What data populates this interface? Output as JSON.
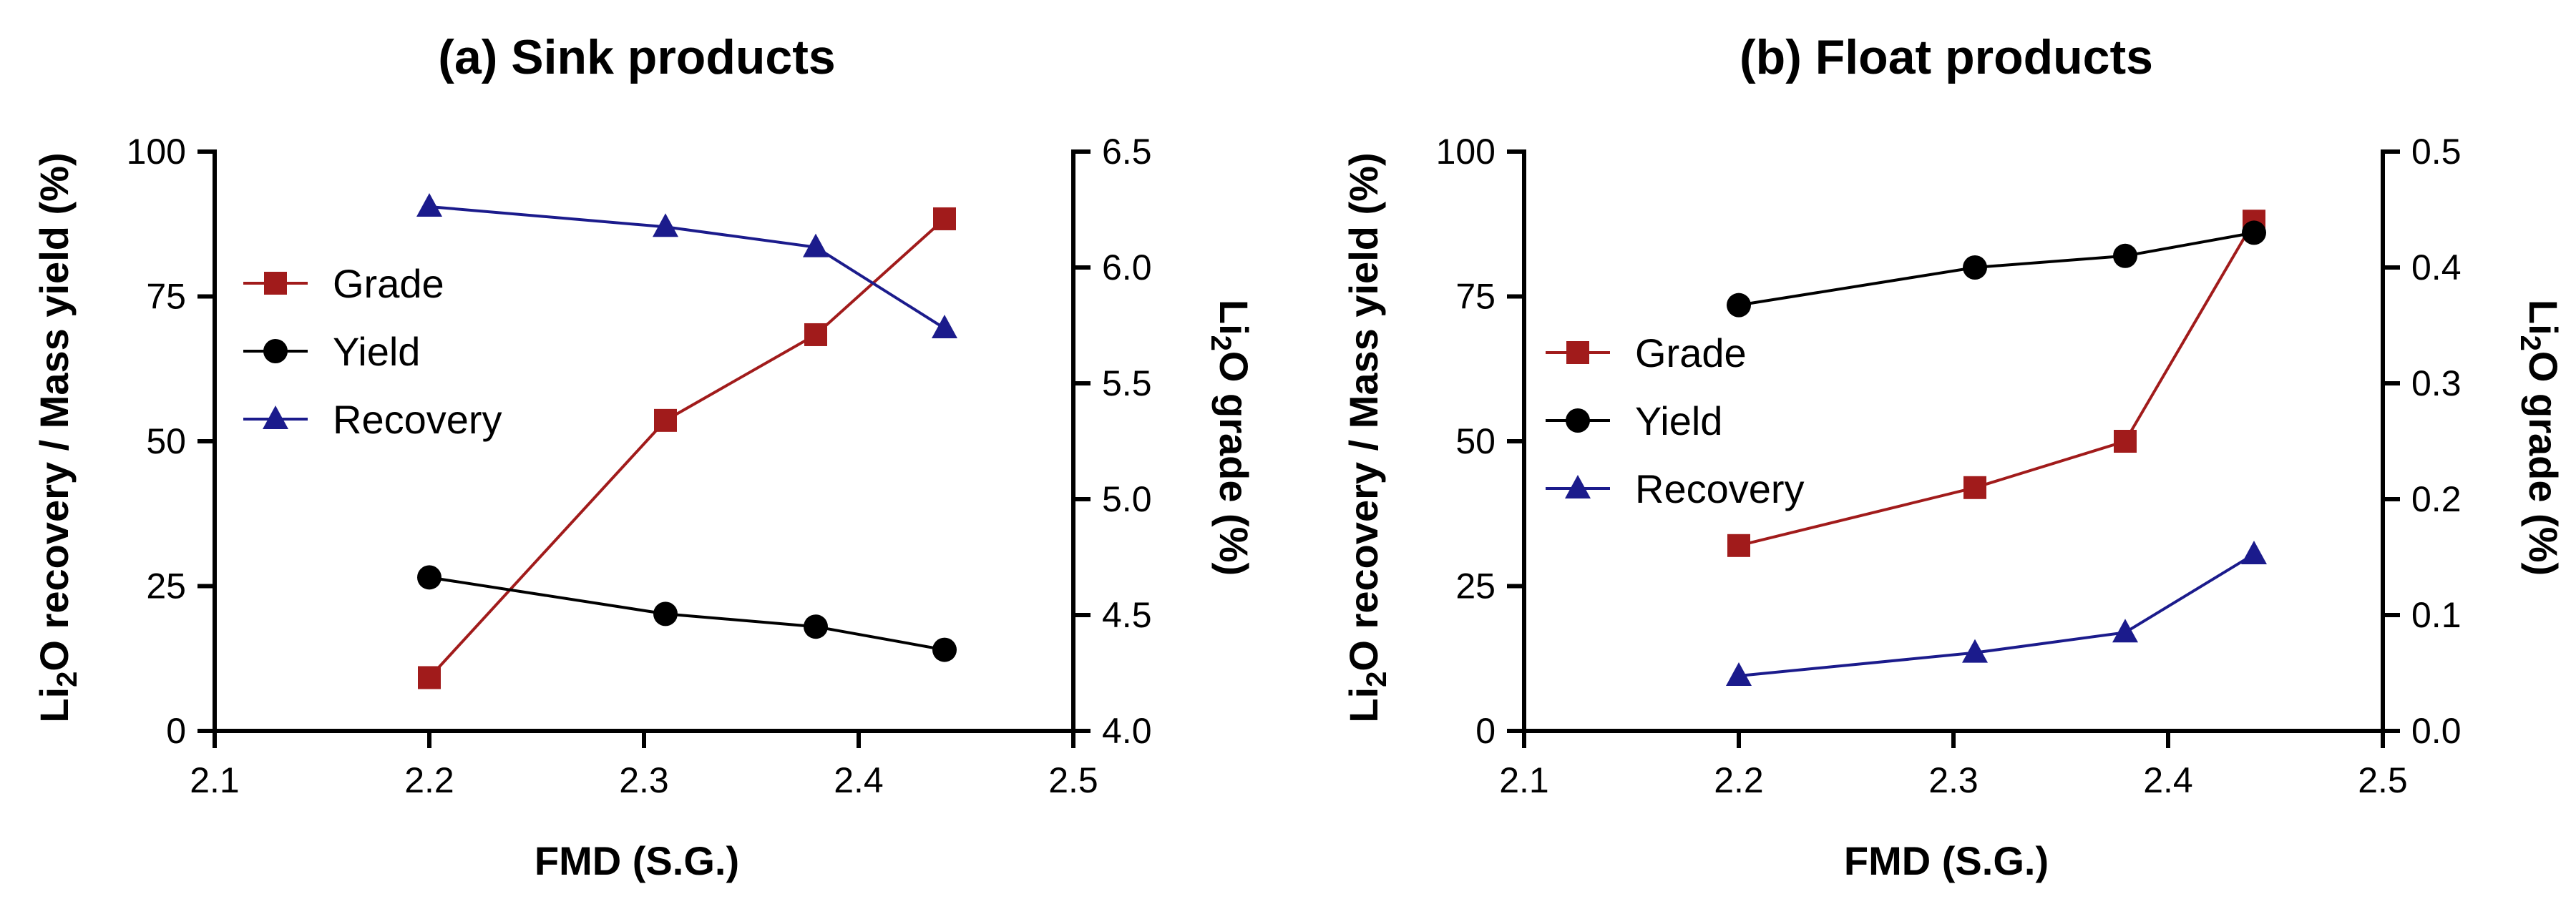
{
  "chart_data": [
    {
      "type": "line",
      "title": "(a) Sink products",
      "xlabel": "FMD (S.G.)",
      "ylabel_left": "Li2O recovery / Mass yield (%)",
      "ylabel_right": "Li2O grade (%)",
      "xlim": [
        2.1,
        2.5
      ],
      "ylim_left": [
        0,
        100
      ],
      "ylim_right": [
        4.0,
        6.5
      ],
      "x_ticks": [
        "2.1",
        "2.2",
        "2.3",
        "2.4",
        "2.5"
      ],
      "y_left_ticks": [
        "0",
        "25",
        "50",
        "75",
        "100"
      ],
      "y_right_ticks": [
        "4.0",
        "4.5",
        "5.0",
        "5.5",
        "6.0",
        "6.5"
      ],
      "legend_position": "upper-left",
      "grid": false,
      "x": [
        2.2,
        2.31,
        2.38,
        2.44
      ],
      "series": [
        {
          "name": "Grade",
          "axis": "right",
          "marker": "square",
          "color": "#a11b1b",
          "values": [
            4.23,
            5.34,
            5.71,
            6.21
          ]
        },
        {
          "name": "Yield",
          "axis": "left",
          "marker": "circle",
          "color": "#000000",
          "values": [
            26.5,
            20.2,
            18.0,
            14.0
          ]
        },
        {
          "name": "Recovery",
          "axis": "left",
          "marker": "triangle",
          "color": "#1b1b8c",
          "values": [
            90.5,
            87.0,
            83.5,
            69.5
          ]
        }
      ]
    },
    {
      "type": "line",
      "title": "(b) Float products",
      "xlabel": "FMD (S.G.)",
      "ylabel_left": "Li2O recovery / Mass yield (%)",
      "ylabel_right": "Li2O grade (%)",
      "xlim": [
        2.1,
        2.5
      ],
      "ylim_left": [
        0,
        100
      ],
      "ylim_right": [
        0.0,
        0.5
      ],
      "x_ticks": [
        "2.1",
        "2.2",
        "2.3",
        "2.4",
        "2.5"
      ],
      "y_left_ticks": [
        "0",
        "25",
        "50",
        "75",
        "100"
      ],
      "y_right_ticks": [
        "0.0",
        "0.1",
        "0.2",
        "0.3",
        "0.4",
        "0.5"
      ],
      "legend_position": "middle-left",
      "grid": false,
      "x": [
        2.2,
        2.31,
        2.38,
        2.44
      ],
      "series": [
        {
          "name": "Grade",
          "axis": "right",
          "marker": "square",
          "color": "#a11b1b",
          "values": [
            0.16,
            0.21,
            0.25,
            0.44
          ]
        },
        {
          "name": "Yield",
          "axis": "left",
          "marker": "circle",
          "color": "#000000",
          "values": [
            73.5,
            80.0,
            82.0,
            86.0
          ]
        },
        {
          "name": "Recovery",
          "axis": "left",
          "marker": "triangle",
          "color": "#1b1b8c",
          "values": [
            9.5,
            13.5,
            17.0,
            30.5
          ]
        }
      ]
    }
  ]
}
